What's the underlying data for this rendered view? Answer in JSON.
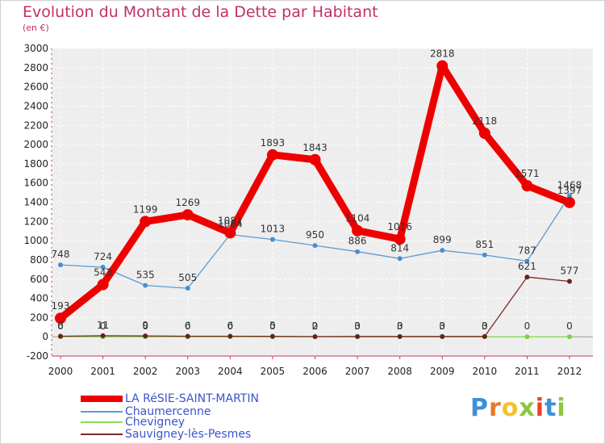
{
  "title": "Evolution du Montant de la Dette par Habitant",
  "unit_label": "(en €)",
  "logo_text": "Proxiti",
  "chart_data": {
    "type": "line",
    "x": [
      "2000",
      "2001",
      "2002",
      "2003",
      "2004",
      "2005",
      "2006",
      "2007",
      "2008",
      "2009",
      "2010",
      "2011",
      "2012"
    ],
    "ylim": [
      -200,
      3000
    ],
    "yticks": [
      -200,
      0,
      200,
      400,
      600,
      800,
      1000,
      1200,
      1400,
      1600,
      1800,
      2000,
      2200,
      2400,
      2600,
      2800,
      3000
    ],
    "grid": true,
    "legend_position": "bottom-left",
    "series": [
      {
        "name": "LA RéSIE-SAINT-MARTIN",
        "color": "#ee0000",
        "values": [
          193,
          543,
          1199,
          1269,
          1081,
          1893,
          1843,
          1104,
          1016,
          2818,
          2118,
          1571,
          1397
        ],
        "labels": [
          "193",
          "543",
          "1199",
          "1269",
          "1081",
          "1893",
          "1843",
          "1104",
          "1016",
          "2818",
          "2118",
          "1571",
          "1397"
        ]
      },
      {
        "name": "Chaumercenne",
        "color": "#5b9bd5",
        "values": [
          748,
          724,
          535,
          505,
          1064,
          1013,
          950,
          886,
          814,
          899,
          851,
          787,
          1468
        ],
        "labels": [
          "748",
          "724",
          "535",
          "505",
          "1064",
          "1013",
          "950",
          "886",
          "814",
          "899",
          "851",
          "787",
          "1468"
        ]
      },
      {
        "name": "Chevigney",
        "color": "#88dd55",
        "values": [
          0,
          0,
          0,
          0,
          0,
          0,
          0,
          0,
          0,
          0,
          0,
          0,
          0
        ],
        "labels": [
          "0",
          "0",
          "0",
          "0",
          "0",
          "0",
          "0",
          "0",
          "0",
          "0",
          "0",
          "0",
          "0"
        ]
      },
      {
        "name": "Sauvigney-lès-Pesmes",
        "color": "#7a2a2a",
        "values": [
          6,
          11,
          9,
          6,
          6,
          5,
          2,
          3,
          3,
          3,
          3,
          621,
          577
        ],
        "labels": [
          "6",
          "11",
          "9",
          "6",
          "6",
          "5",
          "2",
          "3",
          "3",
          "3",
          "3",
          "621",
          "577"
        ]
      }
    ]
  }
}
